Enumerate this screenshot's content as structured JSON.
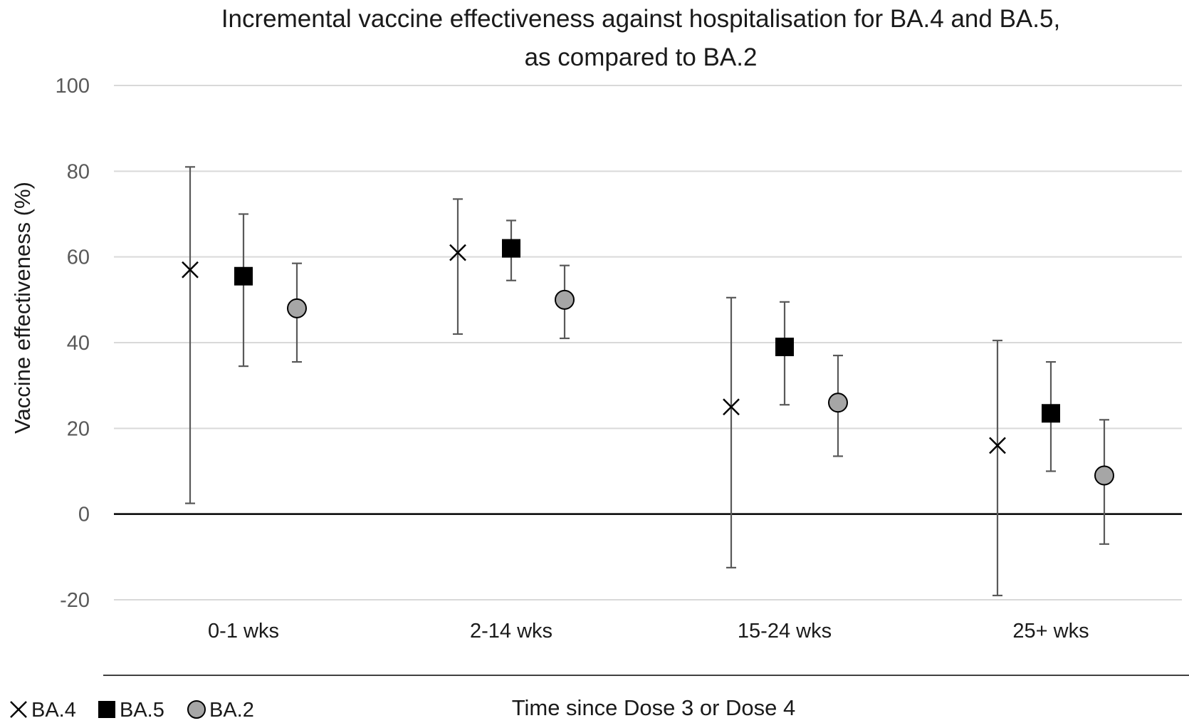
{
  "chart_data": {
    "type": "scatter",
    "title_lines": [
      "Incremental vaccine effectiveness against hospitalisation for BA.4 and BA.5,",
      "as compared to BA.2"
    ],
    "xlabel": "Time since Dose 3 or Dose 4",
    "ylabel": "Vaccine effectiveness (%)",
    "ylim": [
      -20,
      100
    ],
    "yticks": [
      -20,
      0,
      20,
      40,
      60,
      80,
      100
    ],
    "grid": true,
    "legend_position": "bottom-left",
    "categories": [
      "0-1 wks",
      "2-14 wks",
      "15-24 wks",
      "25+ wks"
    ],
    "series": [
      {
        "name": "BA.4",
        "marker": "x",
        "color": "#000000",
        "values": [
          57,
          61,
          25,
          16
        ],
        "lower": [
          2.5,
          42,
          -12.5,
          -19
        ],
        "upper": [
          81,
          73.5,
          50.5,
          40.5
        ]
      },
      {
        "name": "BA.5",
        "marker": "square",
        "color": "#000000",
        "values": [
          55.5,
          62,
          39,
          23.5
        ],
        "lower": [
          34.5,
          54.5,
          25.5,
          10
        ],
        "upper": [
          70,
          68.5,
          49.5,
          35.5
        ]
      },
      {
        "name": "BA.2",
        "marker": "circle",
        "color": "#a6a6a6",
        "values": [
          48,
          50,
          26,
          9
        ],
        "lower": [
          35.5,
          41,
          13.5,
          -7
        ],
        "upper": [
          58.5,
          58,
          37,
          22
        ]
      }
    ],
    "colors": {
      "grid": "#d9d9d9",
      "zero_line": "#000000",
      "error_bar": "#595959",
      "tick_label": "#595959"
    }
  }
}
